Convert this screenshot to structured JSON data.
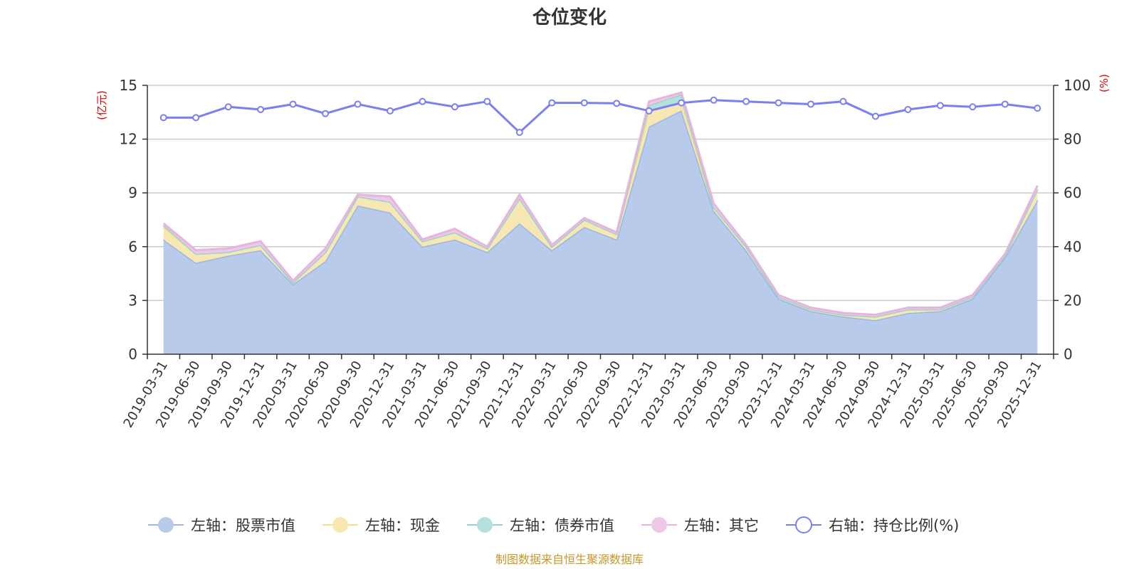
{
  "chart_data": {
    "type": "area",
    "title": "仓位变化",
    "source": "制图数据来自恒生聚源数据库",
    "left_axis": {
      "unit": "(亿元)",
      "min": 0,
      "max": 15,
      "ticks": [
        0,
        3,
        6,
        9,
        12,
        15
      ]
    },
    "right_axis": {
      "unit": "(%)",
      "min": 0,
      "max": 100,
      "ticks": [
        0,
        20,
        40,
        60,
        80,
        100
      ]
    },
    "categories": [
      "2019-03-31",
      "2019-06-30",
      "2019-09-30",
      "2019-12-31",
      "2020-03-31",
      "2020-06-30",
      "2020-09-30",
      "2020-12-31",
      "2021-03-31",
      "2021-06-30",
      "2021-09-30",
      "2021-12-31",
      "2022-03-31",
      "2022-06-30",
      "2022-09-30",
      "2022-12-31",
      "2023-03-31",
      "2023-06-30",
      "2023-09-30",
      "2023-12-31",
      "2024-03-31",
      "2024-06-30",
      "2024-09-30",
      "2024-12-31",
      "2025-03-31",
      "2025-06-30",
      "2025-09-30",
      "2025-12-31"
    ],
    "series": [
      {
        "name": "左轴：股票市值",
        "axis": "left",
        "color": "#9db6e0",
        "fill": "#b8cbea",
        "values": [
          6.4,
          5.1,
          5.5,
          5.8,
          3.9,
          5.2,
          8.3,
          7.9,
          6.0,
          6.4,
          5.7,
          7.3,
          5.8,
          7.1,
          6.4,
          12.7,
          13.6,
          8.0,
          5.8,
          3.1,
          2.4,
          2.1,
          1.9,
          2.3,
          2.4,
          3.1,
          5.4,
          8.6
        ]
      },
      {
        "name": "左轴：现金",
        "axis": "left",
        "color": "#f5dd8c",
        "fill": "#f7e8b3",
        "values": [
          0.7,
          0.5,
          0.2,
          0.3,
          0.1,
          0.5,
          0.5,
          0.6,
          0.3,
          0.4,
          0.2,
          1.4,
          0.2,
          0.4,
          0.3,
          0.9,
          0.5,
          0.2,
          0.2,
          0.1,
          0.1,
          0.1,
          0.2,
          0.2,
          0.1,
          0.1,
          0.1,
          0.6
        ]
      },
      {
        "name": "左轴：债券市值",
        "axis": "left",
        "color": "#96d4cf",
        "fill": "#b5e0dc",
        "values": [
          0.1,
          0,
          0,
          0,
          0,
          0,
          0,
          0,
          0,
          0,
          0,
          0,
          0,
          0,
          0,
          0.3,
          0.4,
          0,
          0,
          0,
          0,
          0,
          0,
          0,
          0,
          0,
          0,
          0
        ]
      },
      {
        "name": "左轴：其它",
        "axis": "left",
        "color": "#e7b5dc",
        "fill": "#eec8e6",
        "values": [
          0.1,
          0.2,
          0.2,
          0.2,
          0.1,
          0.2,
          0.1,
          0.3,
          0.1,
          0.2,
          0.1,
          0.2,
          0.1,
          0.1,
          0.1,
          0.2,
          0.1,
          0.2,
          0.1,
          0.1,
          0.1,
          0.1,
          0.1,
          0.1,
          0.1,
          0.1,
          0.1,
          0.2
        ]
      },
      {
        "name": "右轴：持仓比例(%)",
        "axis": "right",
        "color": "#7b7ff0",
        "values": [
          88,
          88,
          92,
          91,
          93,
          89.5,
          93,
          90.5,
          94,
          92,
          94,
          82.5,
          93.5,
          93.5,
          93.3,
          90.5,
          93.5,
          94.5,
          94,
          93.5,
          93,
          94,
          88.5,
          91,
          92.5,
          92,
          93,
          91.5
        ]
      }
    ],
    "legend_position": "bottom"
  }
}
